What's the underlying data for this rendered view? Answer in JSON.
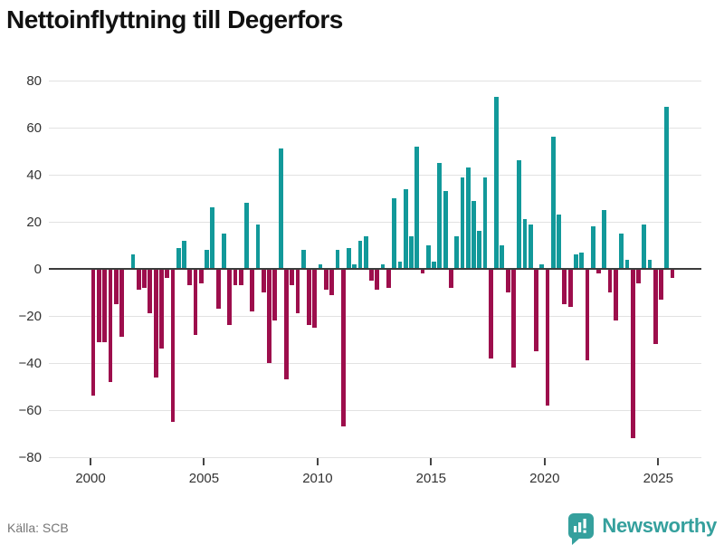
{
  "title": "Nettoinflyttning till Degerfors",
  "source": "Källa: SCB",
  "logo": {
    "text": "Newsworthy"
  },
  "colors": {
    "positive": "#12999a",
    "negative": "#9d0e4c",
    "grid": "#e2e2e2",
    "zero_line": "#3c3c3c",
    "axis_text": "#333333",
    "source_text": "#767676",
    "logo_teal": "#35a09d",
    "title_text": "#111111",
    "background": "#ffffff"
  },
  "chart_data": {
    "type": "bar",
    "title": "Nettoinflyttning till Degerfors",
    "xlabel": "",
    "ylabel": "",
    "frequency": "quarterly",
    "start_period": "2000 Q1",
    "end_period": "2025 Q3",
    "axis_range_y": [
      -80,
      80
    ],
    "y_ticks": [
      80,
      60,
      40,
      20,
      0,
      -20,
      -40,
      -60,
      -80
    ],
    "x_tick_labels": [
      "2000",
      "2005",
      "2010",
      "2015",
      "2020",
      "2025"
    ],
    "grid": "horizontal",
    "legend": "none",
    "values": [
      -54,
      -31,
      -31,
      -48,
      -15,
      -29,
      0,
      6,
      -9,
      -8,
      -19,
      -46,
      -34,
      -4,
      -65,
      9,
      12,
      -7,
      -28,
      -6,
      8,
      26,
      -17,
      15,
      -24,
      -7,
      -7,
      28,
      -18,
      19,
      -10,
      -40,
      -22,
      51,
      -47,
      -7,
      -19,
      8,
      -24,
      -25,
      2,
      -9,
      -11,
      8,
      -67,
      9,
      2,
      12,
      14,
      -5,
      -9,
      2,
      -8,
      30,
      3,
      34,
      14,
      52,
      -2,
      10,
      3,
      45,
      33,
      -8,
      14,
      39,
      43,
      29,
      16,
      39,
      -38,
      73,
      10,
      -10,
      -42,
      46,
      21,
      19,
      -35,
      2,
      -58,
      56,
      23,
      -15,
      -16,
      6,
      7,
      -39,
      18,
      -2,
      25,
      -10,
      -22,
      15,
      4,
      -72,
      -6,
      19,
      4,
      -32,
      -13,
      69,
      -4
    ]
  }
}
